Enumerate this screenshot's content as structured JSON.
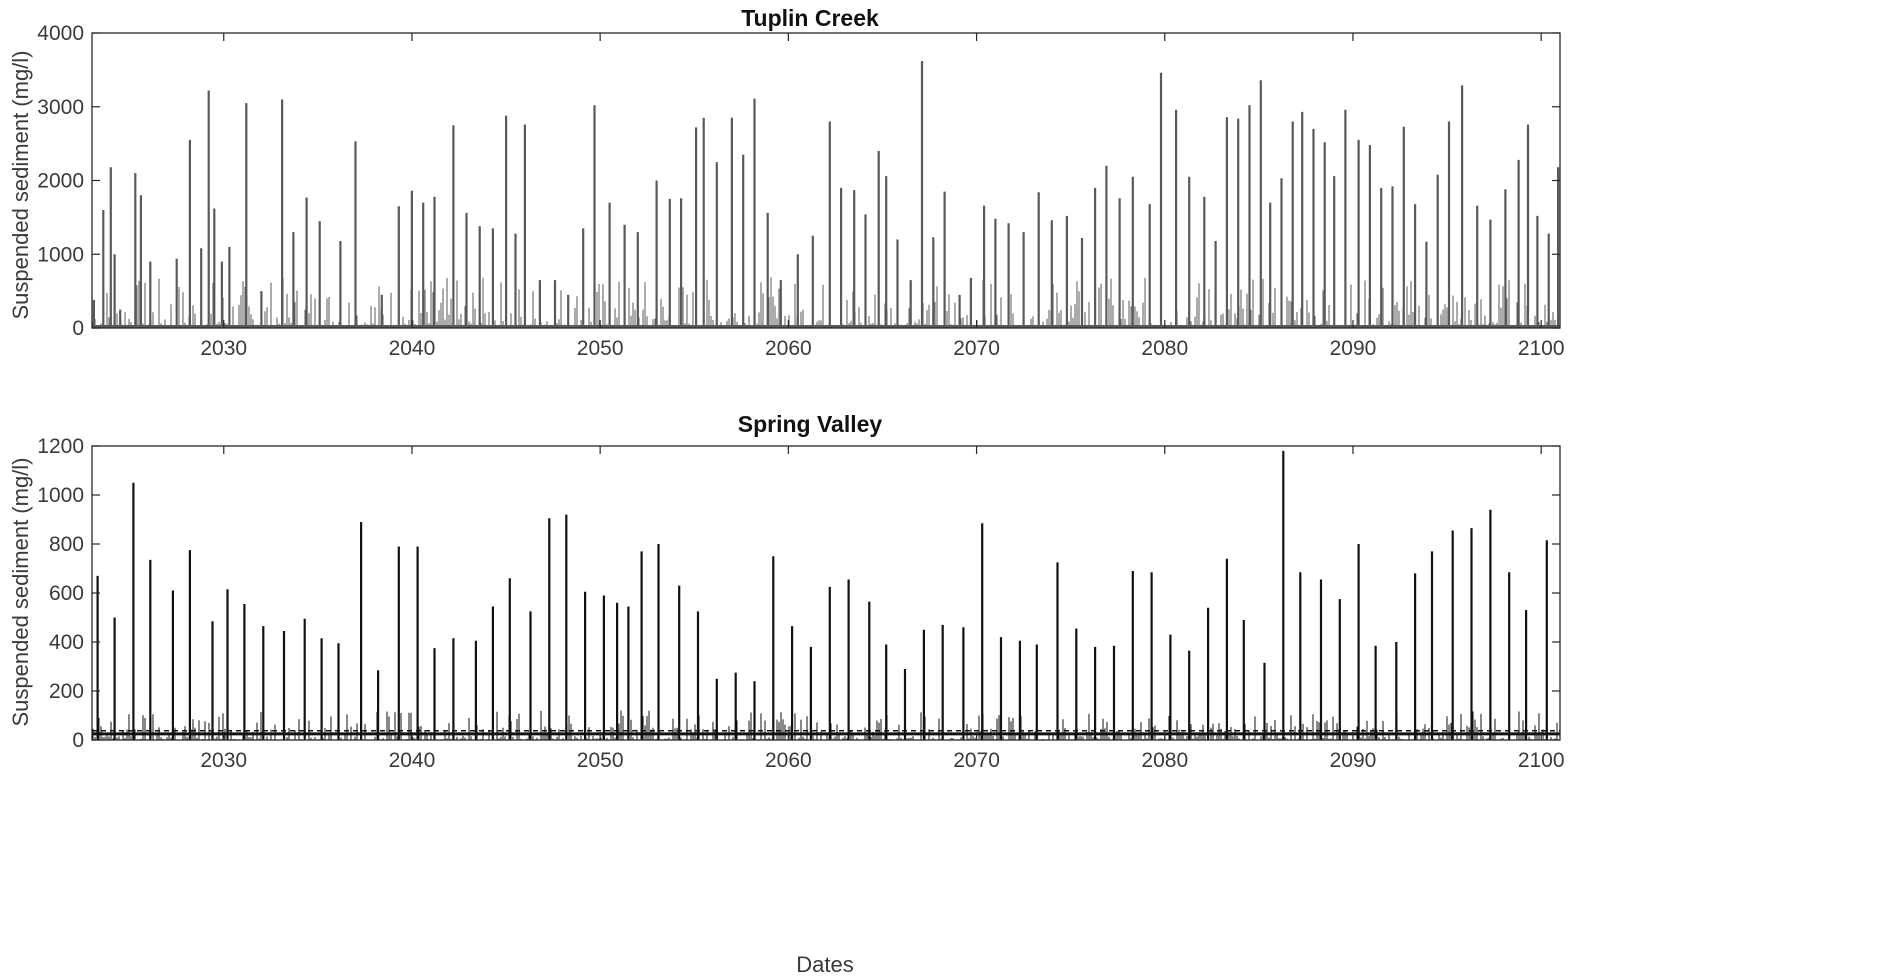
{
  "chart_data": [
    {
      "type": "line",
      "title": "Tuplin Creek",
      "xlabel": "",
      "ylabel": "Suspended sediment (mg/l)",
      "xlim": [
        2023,
        2101
      ],
      "ylim": [
        0,
        4000
      ],
      "xticks": [
        "2030",
        "2040",
        "2050",
        "2060",
        "2070",
        "2080",
        "2090",
        "2100"
      ],
      "yticks": [
        "0",
        "1000",
        "2000",
        "3000",
        "4000"
      ],
      "grid": false,
      "line_color": "#595959",
      "series": [
        {
          "x": [
            2023.1,
            2023.6,
            2024.0,
            2024.2,
            2024.5,
            2025.3,
            2025.6,
            2026.1,
            2027.5,
            2028.2,
            2028.8,
            2029.2,
            2029.5,
            2029.9,
            2030.3,
            2031.2,
            2032.0,
            2033.1,
            2033.7,
            2034.4,
            2035.1,
            2036.2,
            2037.0,
            2038.4,
            2039.3,
            2040.0,
            2040.6,
            2041.2,
            2042.2,
            2042.9,
            2043.6,
            2044.3,
            2045.0,
            2045.5,
            2046.0,
            2046.8,
            2047.6,
            2048.3,
            2049.1,
            2049.7,
            2050.5,
            2051.3,
            2052.0,
            2053.0,
            2053.7,
            2054.3,
            2055.1,
            2055.5,
            2056.2,
            2057.0,
            2057.6,
            2058.2,
            2058.9,
            2059.6,
            2060.5,
            2061.3,
            2062.2,
            2062.8,
            2063.5,
            2064.1,
            2064.8,
            2065.2,
            2065.8,
            2066.5,
            2067.1,
            2067.7,
            2068.3,
            2069.1,
            2069.7,
            2070.4,
            2071.0,
            2071.7,
            2072.5,
            2073.3,
            2074.0,
            2074.8,
            2075.6,
            2076.3,
            2076.9,
            2077.6,
            2078.3,
            2079.2,
            2079.8,
            2080.6,
            2081.3,
            2082.1,
            2082.7,
            2083.3,
            2083.9,
            2084.5,
            2085.1,
            2085.6,
            2086.2,
            2086.8,
            2087.3,
            2087.9,
            2088.5,
            2089.0,
            2089.6,
            2090.3,
            2090.9,
            2091.5,
            2092.1,
            2092.7,
            2093.3,
            2093.9,
            2094.5,
            2095.1,
            2095.8,
            2096.6,
            2097.3,
            2098.1,
            2098.8,
            2099.3,
            2099.8,
            2100.4,
            2100.9
          ],
          "values": [
            380,
            1600,
            2180,
            1000,
            250,
            2100,
            1800,
            900,
            940,
            2550,
            1080,
            3220,
            1620,
            900,
            1100,
            3050,
            500,
            3100,
            1300,
            1770,
            1450,
            1180,
            2530,
            450,
            1650,
            1860,
            1700,
            1780,
            2750,
            1560,
            1380,
            1350,
            2880,
            1280,
            2760,
            650,
            650,
            450,
            1350,
            3020,
            1700,
            1400,
            1300,
            2000,
            1750,
            1760,
            2720,
            2850,
            2250,
            2850,
            2350,
            3110,
            1560,
            650,
            1000,
            1250,
            2800,
            1900,
            1870,
            1540,
            2400,
            2060,
            1200,
            650,
            3620,
            1230,
            1850,
            450,
            680,
            1660,
            1480,
            1420,
            1300,
            1840,
            1460,
            1520,
            1220,
            1900,
            2200,
            1760,
            2050,
            1680,
            3460,
            2960,
            2050,
            1780,
            1180,
            2860,
            2840,
            3020,
            3360,
            1700,
            2030,
            2800,
            2930,
            2700,
            2520,
            2060,
            2960,
            2550,
            2480,
            1900,
            1920,
            2730,
            1680,
            1170,
            2080,
            2800,
            3290,
            1660,
            1470,
            1880,
            2280,
            2760,
            1520,
            1280,
            2180
          ]
        }
      ]
    },
    {
      "type": "line",
      "title": "Spring Valley",
      "xlabel": "Dates",
      "ylabel": "Suspended sediment (mg/l)",
      "xlim": [
        2023,
        2101
      ],
      "ylim": [
        0,
        1200
      ],
      "xticks": [
        "2030",
        "2040",
        "2050",
        "2060",
        "2070",
        "2080",
        "2090",
        "2100"
      ],
      "yticks": [
        "0",
        "200",
        "400",
        "600",
        "800",
        "1000",
        "1200"
      ],
      "grid": false,
      "line_color": "#111111",
      "series": [
        {
          "x": [
            2023.3,
            2024.2,
            2025.2,
            2026.1,
            2027.3,
            2028.2,
            2029.4,
            2030.2,
            2031.1,
            2032.1,
            2033.2,
            2034.3,
            2035.2,
            2036.1,
            2037.3,
            2038.2,
            2039.3,
            2040.3,
            2041.2,
            2042.2,
            2043.4,
            2044.3,
            2045.2,
            2046.3,
            2047.3,
            2048.2,
            2049.2,
            2050.2,
            2050.9,
            2051.5,
            2052.2,
            2053.1,
            2054.2,
            2055.2,
            2056.2,
            2057.2,
            2058.2,
            2059.2,
            2060.2,
            2061.2,
            2062.2,
            2063.2,
            2064.3,
            2065.2,
            2066.2,
            2067.2,
            2068.2,
            2069.3,
            2070.3,
            2071.3,
            2072.3,
            2073.2,
            2074.3,
            2075.3,
            2076.3,
            2077.3,
            2078.3,
            2079.3,
            2080.3,
            2081.3,
            2082.3,
            2083.3,
            2084.2,
            2085.3,
            2086.3,
            2087.2,
            2088.3,
            2089.3,
            2090.3,
            2091.2,
            2092.3,
            2093.3,
            2094.2,
            2095.3,
            2096.3,
            2097.3,
            2098.3,
            2099.2,
            2100.3
          ],
          "values": [
            670,
            500,
            1050,
            735,
            610,
            775,
            485,
            615,
            555,
            465,
            445,
            495,
            415,
            395,
            890,
            285,
            790,
            790,
            375,
            415,
            405,
            545,
            660,
            525,
            905,
            920,
            605,
            590,
            560,
            545,
            770,
            800,
            630,
            525,
            250,
            275,
            240,
            750,
            465,
            380,
            625,
            655,
            565,
            390,
            290,
            450,
            470,
            460,
            885,
            420,
            405,
            390,
            725,
            455,
            380,
            385,
            690,
            685,
            430,
            365,
            540,
            740,
            490,
            315,
            1180,
            685,
            655,
            575,
            800,
            385,
            400,
            680,
            770,
            855,
            865,
            940,
            685,
            530,
            815
          ]
        }
      ]
    }
  ]
}
